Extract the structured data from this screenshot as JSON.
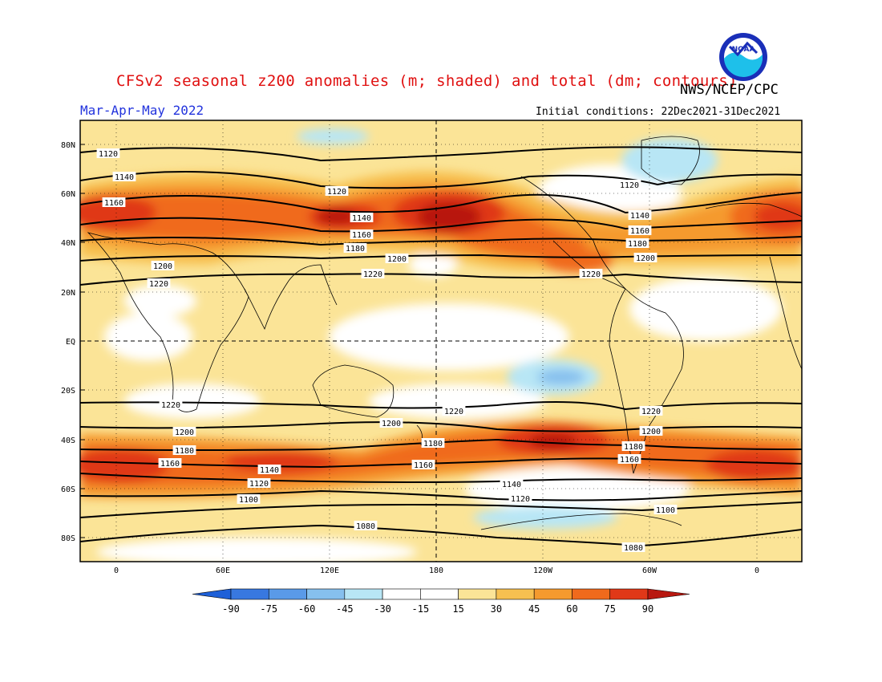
{
  "title": "CFSv2 seasonal z200 anomalies (m; shaded) and total (dm; contours)",
  "agency": "NWS/NCEP/CPC",
  "logo_text": "NOAA",
  "period": "Mar-Apr-May 2022",
  "initial_conditions": "Initial conditions: 22Dec2021-31Dec2021",
  "lat_labels": [
    "80N",
    "60N",
    "40N",
    "20N",
    "EQ",
    "20S",
    "40S",
    "60S",
    "80S"
  ],
  "lon_labels": [
    "0",
    "60E",
    "120E",
    "180",
    "120W",
    "60W",
    "0"
  ],
  "colorbar": {
    "ticks": [
      "-90",
      "-75",
      "-60",
      "-45",
      "-30",
      "-15",
      "15",
      "30",
      "45",
      "60",
      "75",
      "90"
    ],
    "colors": [
      "#1e60d8",
      "#3878e0",
      "#5a9ae8",
      "#86c0ee",
      "#b8e6f5",
      "#ffffff",
      "#fbe497",
      "#f7c050",
      "#f59a2e",
      "#f06a1c",
      "#e03818",
      "#b81810"
    ]
  },
  "contour_labels": [
    "1080",
    "1100",
    "1120",
    "1140",
    "1160",
    "1180",
    "1200",
    "1220"
  ]
}
